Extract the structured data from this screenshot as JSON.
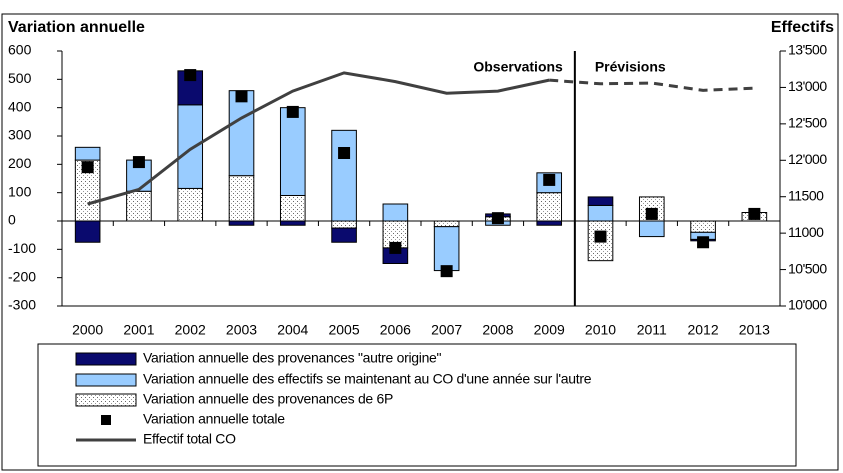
{
  "chart_data": {
    "type": "bar",
    "stacked": true,
    "y_title": "Variation annuelle",
    "y2_title": "Effectifs",
    "annotations": [
      "Observations",
      "Prévisions"
    ],
    "categories": [
      "2000",
      "2001",
      "2002",
      "2003",
      "2004",
      "2005",
      "2006",
      "2007",
      "2008",
      "2009",
      "2010",
      "2011",
      "2012",
      "2013"
    ],
    "forecast_from": "2010",
    "series": [
      {
        "name": "Variation annuelle des provenances \"autre origine\"",
        "kind": "bar",
        "color": "#0a0a6e",
        "values": [
          -75,
          0,
          120,
          -15,
          -15,
          -50,
          -55,
          0,
          10,
          -15,
          30,
          0,
          -5,
          0
        ]
      },
      {
        "name": "Variation annuelle des effectifs se maintenant au CO d'une année sur l'autre",
        "kind": "bar",
        "color": "#99ccff",
        "values": [
          45,
          110,
          295,
          300,
          310,
          320,
          60,
          -155,
          -15,
          70,
          55,
          -55,
          -25,
          0
        ]
      },
      {
        "name": "Variation annuelle des provenances de 6P",
        "kind": "bar",
        "color": "#ffffff",
        "pattern": "dots",
        "values": [
          215,
          105,
          115,
          160,
          90,
          -25,
          -95,
          -20,
          15,
          100,
          -140,
          85,
          -40,
          30
        ]
      },
      {
        "name": "Variation annuelle totale",
        "kind": "marker",
        "color": "#000000",
        "values": [
          190,
          208,
          515,
          440,
          385,
          240,
          -95,
          -177,
          10,
          145,
          -55,
          25,
          -75,
          25
        ]
      },
      {
        "name": "Effectif total CO",
        "kind": "line",
        "axis": "y2",
        "color": "#404040",
        "values": [
          11400,
          11600,
          12150,
          12580,
          12950,
          13200,
          13080,
          12920,
          12950,
          13100,
          13050,
          13060,
          12960,
          12990
        ]
      }
    ],
    "ylim": [
      -300,
      600
    ],
    "yticks": [
      -300,
      -200,
      -100,
      0,
      100,
      200,
      300,
      400,
      500,
      600
    ],
    "y2lim": [
      10000,
      13500
    ],
    "y2ticks": [
      {
        "value": 10000,
        "label": "10'000"
      },
      {
        "value": 10500,
        "label": "10'500"
      },
      11000,
      11500,
      {
        "value": 12000,
        "label": "12'000"
      },
      {
        "value": 12500,
        "label": "12'500"
      },
      {
        "value": 13000,
        "label": "13'000"
      },
      {
        "value": 13500,
        "label": "13'500"
      }
    ],
    "grid": false
  }
}
